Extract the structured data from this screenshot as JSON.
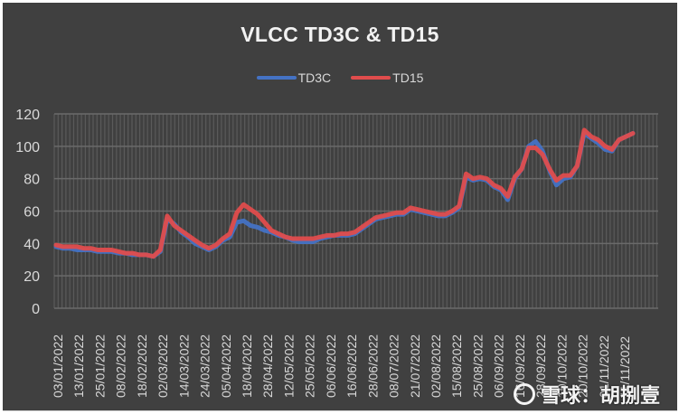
{
  "chart_data": {
    "type": "line",
    "title": "VLCC TD3C & TD15",
    "xlabel": "",
    "ylabel": "",
    "ylim": [
      0,
      120
    ],
    "yticks": [
      0,
      20,
      40,
      60,
      80,
      100,
      120
    ],
    "grid": true,
    "legend_position": "top",
    "x_tick_labels": [
      "03/01/2022",
      "13/01/2022",
      "25/01/2022",
      "08/02/2022",
      "18/02/2022",
      "02/03/2022",
      "14/03/2022",
      "24/03/2022",
      "05/04/2022",
      "18/04/2022",
      "28/04/2022",
      "12/05/2022",
      "25/05/2022",
      "06/06/2022",
      "16/06/2022",
      "28/06/2022",
      "08/07/2022",
      "21/07/2022",
      "02/08/2022",
      "15/08/2022",
      "25/08/2022",
      "06/09/2022",
      "16/09/2022",
      "28/09/2022",
      "10/10/2022",
      "20/10/2022",
      "01/11/2022",
      "11/11/2022"
    ],
    "series": [
      {
        "name": "TD3C",
        "color": "#4472c4",
        "values": [
          38,
          37,
          37,
          36,
          36,
          36,
          35,
          35,
          35,
          34,
          34,
          33,
          33,
          33,
          32,
          35,
          55,
          52,
          47,
          44,
          40,
          38,
          36,
          38,
          42,
          44,
          53,
          54,
          51,
          50,
          48,
          47,
          45,
          44,
          42,
          41,
          41,
          41,
          43,
          44,
          45,
          45,
          45,
          46,
          49,
          52,
          55,
          56,
          57,
          58,
          58,
          61,
          60,
          59,
          58,
          57,
          57,
          59,
          62,
          81,
          79,
          80,
          79,
          75,
          73,
          67,
          80,
          86,
          100,
          103,
          97,
          85,
          76,
          80,
          81,
          88,
          108,
          105,
          102,
          98,
          97,
          104,
          106,
          108
        ]
      },
      {
        "name": "TD15",
        "color": "#e04c4c",
        "values": [
          39,
          38,
          38,
          38,
          37,
          37,
          36,
          36,
          36,
          35,
          34,
          34,
          33,
          33,
          32,
          36,
          57,
          51,
          48,
          45,
          42,
          39,
          37,
          39,
          43,
          46,
          59,
          64,
          61,
          58,
          53,
          48,
          46,
          44,
          43,
          43,
          43,
          43,
          44,
          45,
          45,
          46,
          46,
          47,
          50,
          53,
          56,
          57,
          58,
          59,
          59,
          62,
          61,
          60,
          59,
          58,
          58,
          60,
          63,
          83,
          80,
          81,
          80,
          76,
          74,
          69,
          81,
          86,
          99,
          99,
          95,
          86,
          79,
          82,
          82,
          88,
          110,
          106,
          104,
          100,
          98,
          104,
          106,
          108
        ]
      }
    ]
  },
  "legend": [
    {
      "label": "TD3C",
      "color": "#4472c4"
    },
    {
      "label": "TD15",
      "color": "#e04c4c"
    }
  ],
  "watermark": {
    "text": "雪球：胡捌壹"
  }
}
